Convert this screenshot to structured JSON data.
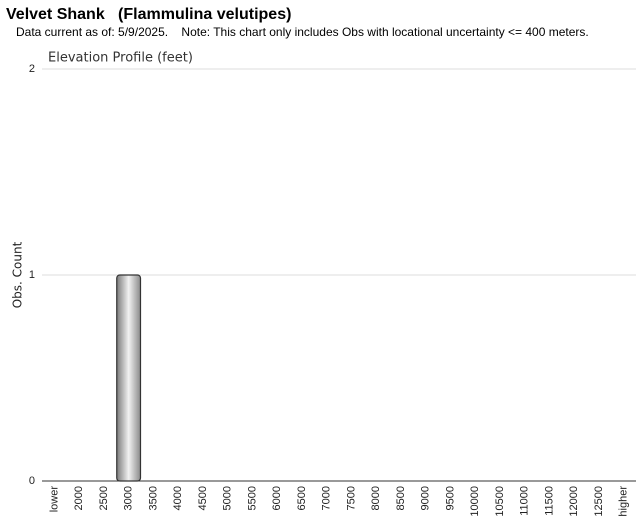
{
  "header": {
    "title": "Velvet Shank   (Flammulina velutipes)",
    "subtitle": "Data current as of: 5/9/2025.    Note: This chart only includes Obs with locational uncertainty <= 400 meters."
  },
  "chart_data": {
    "type": "bar",
    "title": "Elevation Profile (feet)",
    "y_label": "Obs. Count",
    "categories": [
      "lower",
      "2000",
      "2500",
      "3000",
      "3500",
      "4000",
      "4500",
      "5000",
      "5500",
      "6000",
      "6500",
      "7000",
      "7500",
      "8000",
      "8500",
      "9000",
      "9500",
      "10000",
      "10500",
      "11000",
      "11500",
      "12000",
      "12500",
      "higher"
    ],
    "values": [
      0,
      0,
      0,
      1,
      0,
      0,
      0,
      0,
      0,
      0,
      0,
      0,
      0,
      0,
      0,
      0,
      0,
      0,
      0,
      0,
      0,
      0,
      0,
      0
    ],
    "color": "#a0a0a0",
    "ylim": [
      0,
      2
    ],
    "yticks": [
      0,
      1,
      2
    ],
    "grid": true
  }
}
